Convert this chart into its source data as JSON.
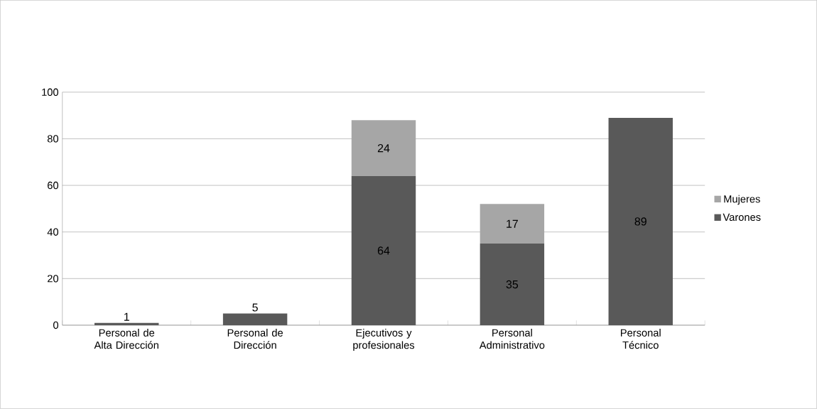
{
  "chart_data": {
    "type": "bar",
    "stacked": true,
    "categories": [
      "Personal de Alta Dirección",
      "Personal de Dirección",
      "Ejecutivos y profesionales",
      "Personal Administrativo",
      "Personal Técnico"
    ],
    "series": [
      {
        "name": "Varones",
        "color": "#595959",
        "values": [
          1,
          5,
          64,
          35,
          89
        ],
        "value_labels": [
          "1",
          "5",
          "64",
          "35",
          "89"
        ]
      },
      {
        "name": "Mujeres",
        "color": "#a6a6a6",
        "values": [
          null,
          null,
          24,
          17,
          null
        ],
        "value_labels": [
          null,
          null,
          "24",
          "17",
          null
        ]
      }
    ],
    "ylim": [
      0,
      100
    ],
    "yticks": [
      0,
      20,
      40,
      60,
      80,
      100
    ],
    "grid": "y",
    "legend": "right"
  }
}
